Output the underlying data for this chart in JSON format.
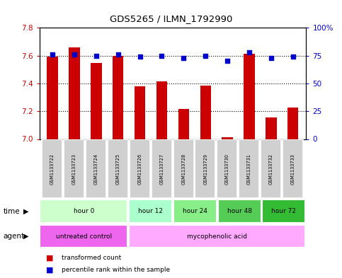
{
  "title": "GDS5265 / ILMN_1792990",
  "samples": [
    "GSM1133722",
    "GSM1133723",
    "GSM1133724",
    "GSM1133725",
    "GSM1133726",
    "GSM1133727",
    "GSM1133728",
    "GSM1133729",
    "GSM1133730",
    "GSM1133731",
    "GSM1133732",
    "GSM1133733"
  ],
  "transformed_count": [
    7.595,
    7.66,
    7.545,
    7.6,
    7.38,
    7.415,
    7.215,
    7.385,
    7.015,
    7.615,
    7.155,
    7.225
  ],
  "percentile_rank": [
    76,
    76,
    75,
    76,
    74,
    75,
    73,
    75,
    70,
    78,
    73,
    74
  ],
  "ylim_left": [
    7.0,
    7.8
  ],
  "ylim_right": [
    0,
    100
  ],
  "yticks_left": [
    7.0,
    7.2,
    7.4,
    7.6,
    7.8
  ],
  "yticks_right": [
    0,
    25,
    50,
    75,
    100
  ],
  "ytick_labels_right": [
    "0",
    "25",
    "50",
    "75",
    "100%"
  ],
  "bar_color": "#cc0000",
  "dot_color": "#0000cc",
  "bar_width": 0.5,
  "time_groups": [
    {
      "label": "hour 0",
      "start": 0,
      "end": 4,
      "color": "#ccffcc"
    },
    {
      "label": "hour 12",
      "start": 4,
      "end": 6,
      "color": "#aaffcc"
    },
    {
      "label": "hour 24",
      "start": 6,
      "end": 8,
      "color": "#88ee88"
    },
    {
      "label": "hour 48",
      "start": 8,
      "end": 10,
      "color": "#55cc55"
    },
    {
      "label": "hour 72",
      "start": 10,
      "end": 12,
      "color": "#33bb33"
    }
  ],
  "agent_groups": [
    {
      "label": "untreated control",
      "start": 0,
      "end": 4,
      "color": "#ee66ee"
    },
    {
      "label": "mycophenolic acid",
      "start": 4,
      "end": 12,
      "color": "#ffaaff"
    }
  ],
  "legend_red_label": "transformed count",
  "legend_blue_label": "percentile rank within the sample",
  "time_label": "time",
  "agent_label": "agent",
  "tick_label_color_left": "#cc0000",
  "tick_label_color_right": "#0000cc"
}
